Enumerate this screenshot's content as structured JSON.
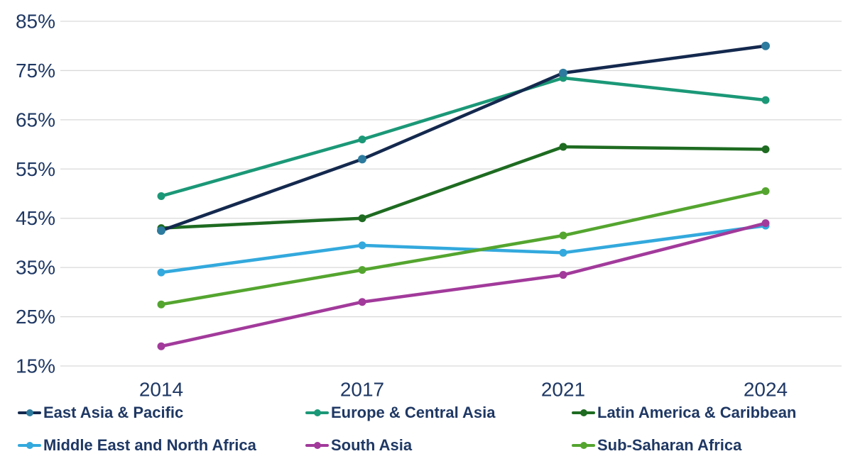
{
  "chart_data": {
    "type": "line",
    "title": "",
    "xlabel": "",
    "ylabel": "",
    "categories": [
      "2014",
      "2017",
      "2021",
      "2024"
    ],
    "series": [
      {
        "name": "East Asia & Pacific",
        "color": "#14294E",
        "marker_color": "#2D7B9E",
        "values": [
          42.5,
          57,
          74.5,
          80
        ]
      },
      {
        "name": "Europe & Central Asia",
        "color": "#1B9877",
        "marker_color": "#1B9877",
        "values": [
          49.5,
          61,
          73.5,
          69
        ]
      },
      {
        "name": "Latin America & Caribbean",
        "color": "#1E6B21",
        "marker_color": "#1E6B21",
        "values": [
          43,
          45,
          59.5,
          59
        ]
      },
      {
        "name": "Middle East and North Africa",
        "color": "#33A9DD",
        "marker_color": "#33A9DD",
        "values": [
          34,
          39.5,
          38,
          43.5
        ]
      },
      {
        "name": "South Asia",
        "color": "#A23A9B",
        "marker_color": "#A23A9B",
        "values": [
          19,
          28,
          33.5,
          44
        ]
      },
      {
        "name": "Sub-Saharan Africa",
        "color": "#54A52F",
        "marker_color": "#54A52F",
        "values": [
          27.5,
          34.5,
          41.5,
          50.5
        ]
      }
    ],
    "ylim": [
      15,
      85
    ],
    "y_ticks": [
      85,
      75,
      65,
      55,
      45,
      35,
      25,
      15
    ],
    "y_tick_suffix": "%",
    "grid": true,
    "grid_color": "#D9D9D9",
    "axis_text_color": "#1F3864",
    "legend_position": "bottom",
    "legend_text_color": "#1F3864",
    "background_color": "#FFFFFF"
  }
}
